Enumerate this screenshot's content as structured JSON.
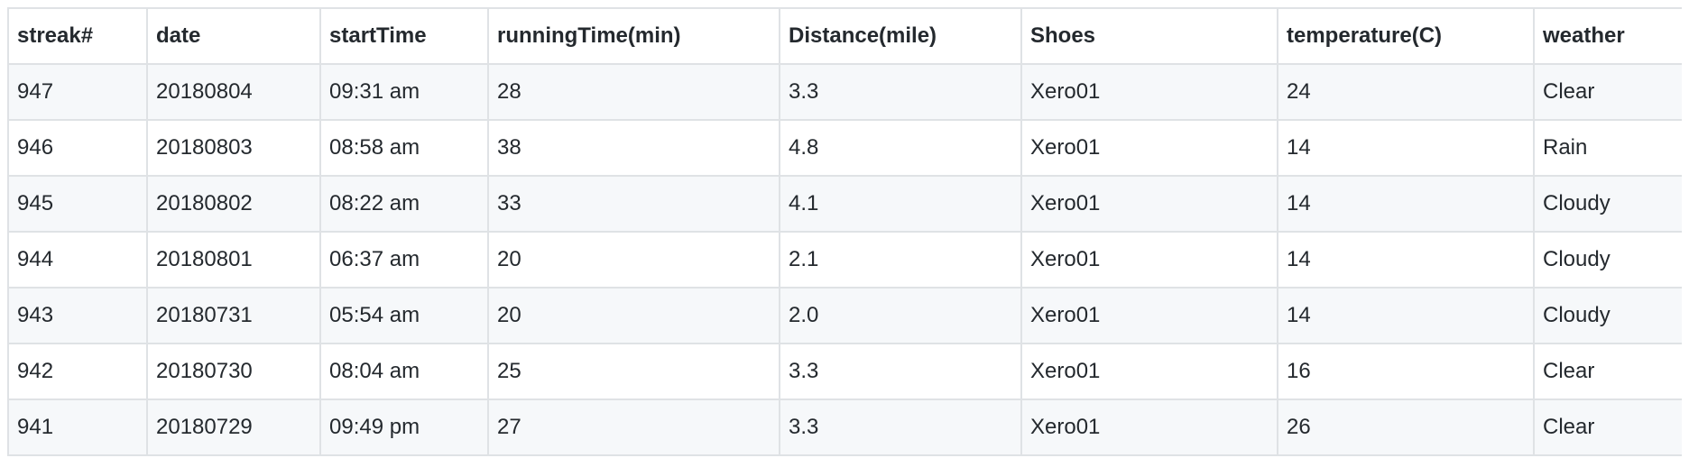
{
  "table": {
    "columns": [
      "streak#",
      "date",
      "startTime",
      "runningTime(min)",
      "Distance(mile)",
      "Shoes",
      "temperature(C)",
      "weather"
    ],
    "rows": [
      [
        "947",
        "20180804",
        "09:31 am",
        "28",
        "3.3",
        "Xero01",
        "24",
        "Clear"
      ],
      [
        "946",
        "20180803",
        "08:58 am",
        "38",
        "4.8",
        "Xero01",
        "14",
        "Rain"
      ],
      [
        "945",
        "20180802",
        "08:22 am",
        "33",
        "4.1",
        "Xero01",
        "14",
        "Cloudy"
      ],
      [
        "944",
        "20180801",
        "06:37 am",
        "20",
        "2.1",
        "Xero01",
        "14",
        "Cloudy"
      ],
      [
        "943",
        "20180731",
        "05:54 am",
        "20",
        "2.0",
        "Xero01",
        "14",
        "Cloudy"
      ],
      [
        "942",
        "20180730",
        "08:04 am",
        "25",
        "3.3",
        "Xero01",
        "16",
        "Clear"
      ],
      [
        "941",
        "20180729",
        "09:49 pm",
        "27",
        "3.3",
        "Xero01",
        "26",
        "Clear"
      ]
    ]
  },
  "colors": {
    "border": "#dfe2e5",
    "stripe": "#f6f8fa",
    "text": "#24292e"
  }
}
